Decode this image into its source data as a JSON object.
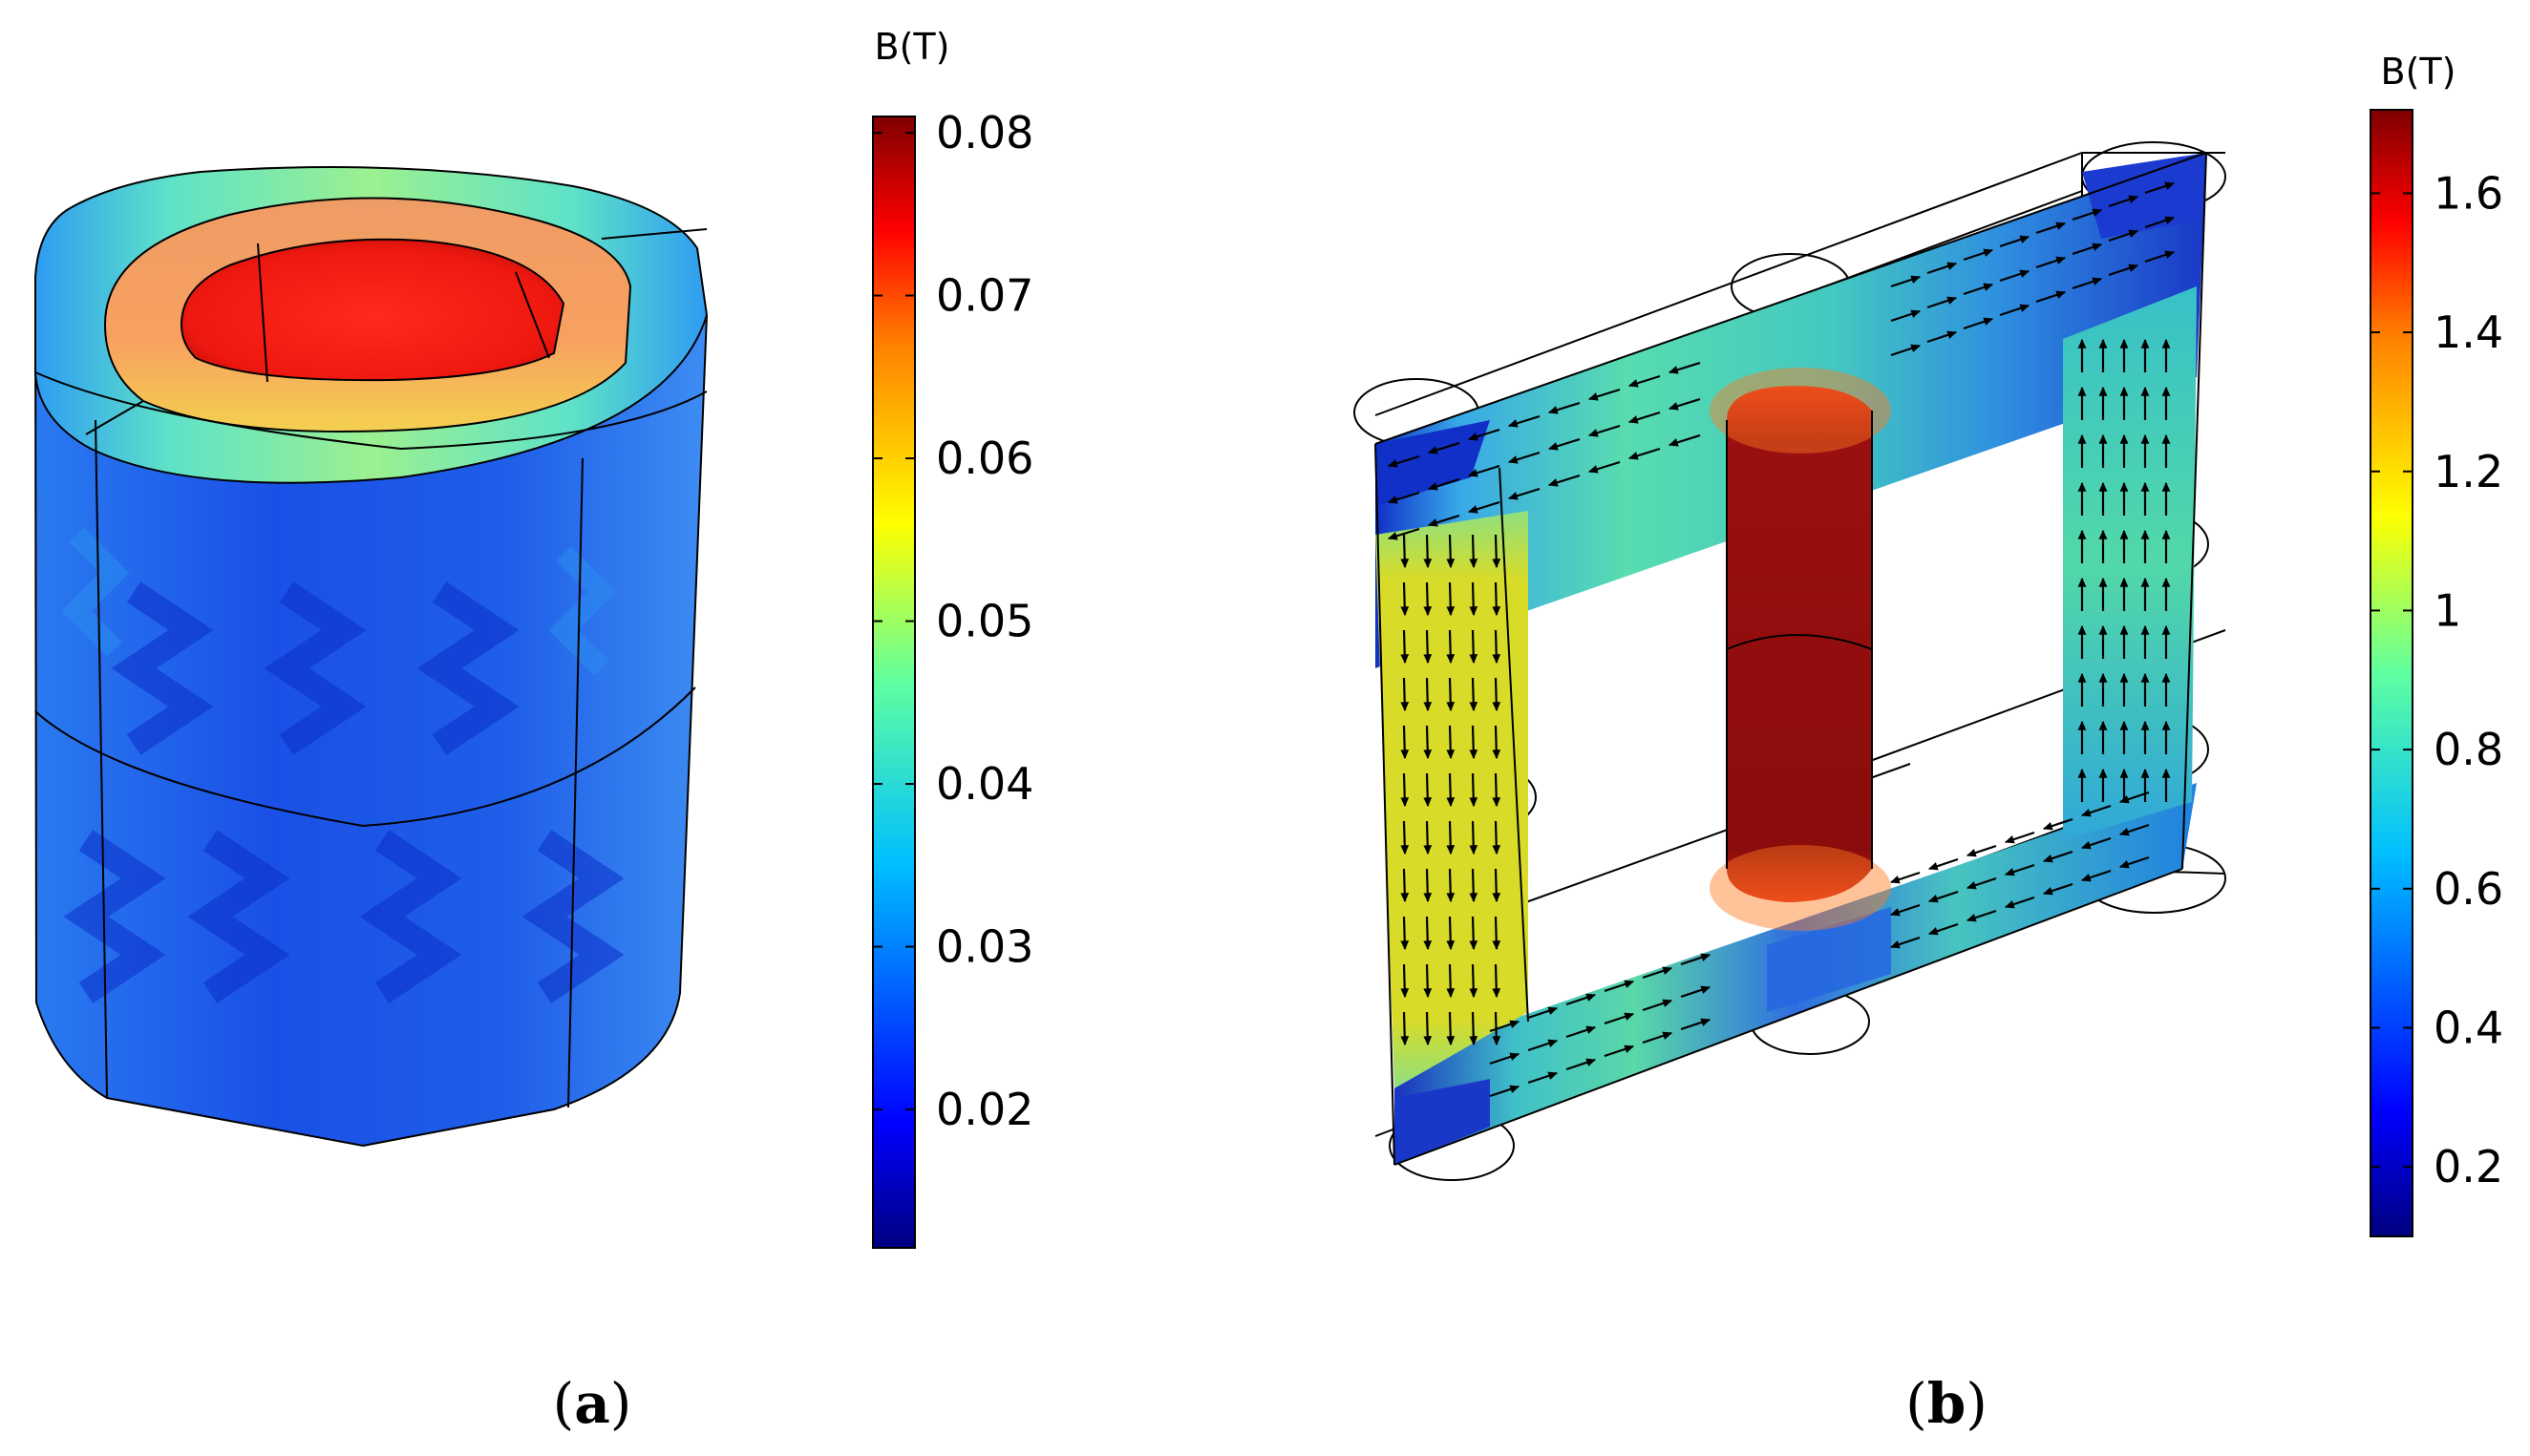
{
  "panels": [
    {
      "caption": "(a)",
      "caption_letter": "a",
      "object": "hollow-cylinder-coil",
      "colorbar": {
        "title": "B(T)",
        "min": 0.0115,
        "max": 0.081,
        "ticks": [
          "0.08",
          "0.07",
          "0.06",
          "0.05",
          "0.04",
          "0.03",
          "0.02"
        ],
        "tick_values": [
          0.08,
          0.07,
          0.06,
          0.05,
          0.04,
          0.03,
          0.02
        ]
      },
      "field_levels": {
        "bore_inner_wall": 0.078,
        "top_annulus": 0.064,
        "outer_top_rim": 0.042,
        "outer_surface": 0.026
      }
    },
    {
      "caption": "(b)",
      "caption_letter": "b",
      "object": "transformer-core-with-flux-arrows",
      "colorbar": {
        "title": "B(T)",
        "min": 0.1,
        "max": 1.72,
        "ticks": [
          "1.6",
          "1.4",
          "1.2",
          "1",
          "0.8",
          "0.6",
          "0.4",
          "0.2"
        ],
        "tick_values": [
          1.6,
          1.4,
          1.2,
          1.0,
          0.8,
          0.6,
          0.4,
          0.2
        ]
      },
      "field_levels": {
        "center_limb": 1.7,
        "left_limb": 1.12,
        "right_limb": 0.78,
        "yokes": 0.62,
        "outer_corners": 0.25
      }
    }
  ],
  "colors": {
    "jet_scale": [
      "#00007f",
      "#0000ff",
      "#007fff",
      "#00ffff",
      "#7fff7f",
      "#ffff00",
      "#ff7f00",
      "#ff0000",
      "#7f0000"
    ],
    "left_limb": "#d6dc2a",
    "center_limb": "#8e0e0e",
    "right_limb": "#4fd4a8",
    "yoke": "#3ec2a4",
    "cylinder_body": "#1f5fe0",
    "bore": "#f01a10",
    "annulus": "#f4925a",
    "outline": "#000000",
    "background": "#ffffff"
  }
}
